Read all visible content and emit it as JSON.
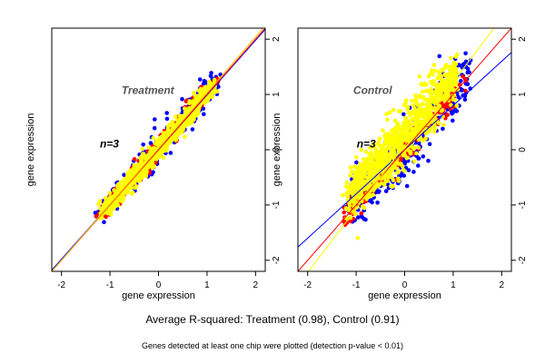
{
  "chart_data": [
    {
      "type": "scatter",
      "panel_label": "Treatment",
      "n_label": "n=3",
      "xlabel": "gene expression",
      "ylabel": "gene expression",
      "xlim": [
        -2.2,
        2.2
      ],
      "ylim": [
        -2.2,
        2.2
      ],
      "xticks": [
        -2,
        -1,
        0,
        1,
        2
      ],
      "yticks": [
        -2,
        -1,
        0,
        1,
        2
      ],
      "grid": false,
      "series": [
        {
          "color": "#0000ff",
          "center": [
            0.0,
            0.0
          ],
          "extent": 1.25,
          "spread": 0.16,
          "bias": -0.06,
          "count": 240
        },
        {
          "color": "#ff0000",
          "center": [
            0.0,
            0.0
          ],
          "extent": 1.2,
          "spread": 0.12,
          "bias": -0.03,
          "count": 240
        },
        {
          "color": "#ffff00",
          "center": [
            0.0,
            0.0
          ],
          "extent": 1.15,
          "spread": 0.1,
          "bias": 0.02,
          "count": 900
        }
      ],
      "lines": [
        {
          "color": "#0000ff",
          "slope": 0.99,
          "intercept": 0.0
        },
        {
          "color": "#ff0000",
          "slope": 1.0,
          "intercept": 0.0
        },
        {
          "color": "#ffc000",
          "slope": 1.01,
          "intercept": 0.02
        }
      ]
    },
    {
      "type": "scatter",
      "panel_label": "Control",
      "n_label": "n=3",
      "xlabel": "gene expression",
      "ylabel": "gene expression",
      "xlim": [
        -2.2,
        2.2
      ],
      "ylim": [
        -2.2,
        2.2
      ],
      "xticks": [
        -2,
        -1,
        0,
        1,
        2
      ],
      "yticks": [
        -2,
        -1,
        0,
        1,
        2
      ],
      "grid": false,
      "series": [
        {
          "color": "#0000ff",
          "center": [
            0.1,
            -0.1
          ],
          "extent": 1.25,
          "spread": 0.3,
          "bias": -0.3,
          "count": 320
        },
        {
          "color": "#ff0000",
          "center": [
            0.0,
            0.0
          ],
          "extent": 1.2,
          "spread": 0.12,
          "bias": 0.0,
          "count": 220
        },
        {
          "color": "#ffff00",
          "center": [
            -0.05,
            0.05
          ],
          "extent": 1.1,
          "spread": 0.28,
          "bias": 0.22,
          "count": 1000
        }
      ],
      "lines": [
        {
          "color": "#0000ff",
          "slope": 0.8,
          "intercept": 0.0
        },
        {
          "color": "#ff0000",
          "slope": 1.0,
          "intercept": 0.0
        },
        {
          "color": "#ffff00",
          "slope": 1.15,
          "intercept": 0.08
        }
      ]
    }
  ],
  "footer": {
    "summary": "Average R-squared: Treatment (0.98), Control (0.91)",
    "note": "Genes detected at least one chip were plotted (detection p-value < 0.01)"
  }
}
